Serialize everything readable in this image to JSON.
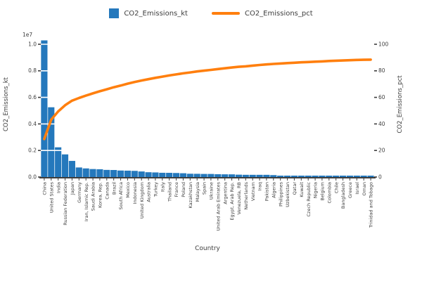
{
  "legend": {
    "bar_label": "CO2_Emissions_kt",
    "line_label": "CO2_Emissions_pct"
  },
  "colors": {
    "bar": "#2478bc",
    "line": "#ff7f0e",
    "text": "#3d3d3d",
    "grid": "#ffffff",
    "axis_line": "#3d3d3d"
  },
  "axes": {
    "left": {
      "title": "CO2_Emissions_kt",
      "tick_labels": [
        "0.0",
        "0.2",
        "0.4",
        "0.6",
        "0.8",
        "1.0"
      ],
      "offset_text": "1e7",
      "range_kt": [
        0,
        10000000
      ]
    },
    "right": {
      "title": "CO2_Emissions_pct",
      "tick_labels": [
        "0",
        "20",
        "40",
        "60",
        "80",
        "100"
      ],
      "range_pct": [
        0,
        100
      ]
    },
    "x": {
      "title": "Country"
    }
  },
  "chart_data": {
    "type": "bar",
    "subtype": "pareto-combo (bars + cumulative line)",
    "title": "",
    "xlabel": "Country",
    "ylabel_left": "CO2_Emissions_kt",
    "ylabel_right": "CO2_Emissions_pct",
    "ylim_left": [
      0,
      10000000
    ],
    "ylim_right": [
      0,
      100
    ],
    "grid": "horizontal white gridlines",
    "legend_position": "top-center",
    "categories": [
      "China",
      "United States",
      "India",
      "Russian Federation",
      "Japan",
      "Germany",
      "Iran, Islamic Rep.",
      "Saudi Arabia",
      "Korea, Rep.",
      "Canada",
      "Brazil",
      "South Africa",
      "Mexico",
      "Indonesia",
      "United Kingdom",
      "Australia",
      "Turkey",
      "Italy",
      "Thailand",
      "France",
      "Poland",
      "Kazakhstan",
      "Malaysia",
      "Spain",
      "Ukraine",
      "United Arab Emirates",
      "Argentina",
      "Egypt, Arab Rep.",
      "Venezuela, RB",
      "Netherlands",
      "Vietnam",
      "Iraq",
      "Pakistan",
      "Algeria",
      "Philippines",
      "Uzbekistan",
      "Qatar",
      "Kuwait",
      "Czech Republic",
      "Nigeria",
      "Belgium",
      "Colombia",
      "Chile",
      "Bangladesh",
      "Greece",
      "Israel",
      "Oman",
      "Trinidad and Tobago"
    ],
    "series": [
      {
        "name": "CO2_Emissions_kt",
        "type": "bar",
        "axis": "left",
        "color": "#2478bc",
        "values": [
          10291930,
          5254280,
          2238380,
          1705350,
          1214050,
          719880,
          649480,
          601050,
          587160,
          537190,
          529810,
          489770,
          480270,
          464180,
          419820,
          361260,
          345980,
          320410,
          316210,
          303280,
          285740,
          248150,
          242820,
          232440,
          231000,
          211500,
          204020,
          201900,
          178570,
          167300,
          166910,
          166590,
          166330,
          145400,
          105650,
          104960,
          98990,
          98740,
          96940,
          96280,
          93280,
          81000,
          75560,
          73180,
          67200,
          65200,
          63460,
          34970
        ]
      },
      {
        "name": "CO2_Emissions_pct",
        "type": "line",
        "axis": "right",
        "color": "#ff7f0e",
        "values": [
          28.6,
          43.2,
          49.4,
          54.1,
          57.5,
          59.5,
          61.3,
          63.0,
          64.6,
          66.1,
          67.6,
          68.9,
          70.3,
          71.6,
          72.7,
          73.7,
          74.7,
          75.6,
          76.5,
          77.3,
          78.1,
          78.8,
          79.5,
          80.1,
          80.7,
          81.3,
          81.9,
          82.5,
          83.0,
          83.4,
          83.9,
          84.4,
          84.8,
          85.2,
          85.5,
          85.8,
          86.1,
          86.4,
          86.6,
          86.9,
          87.1,
          87.4,
          87.6,
          87.8,
          88.0,
          88.2,
          88.3,
          88.4
        ]
      }
    ]
  }
}
